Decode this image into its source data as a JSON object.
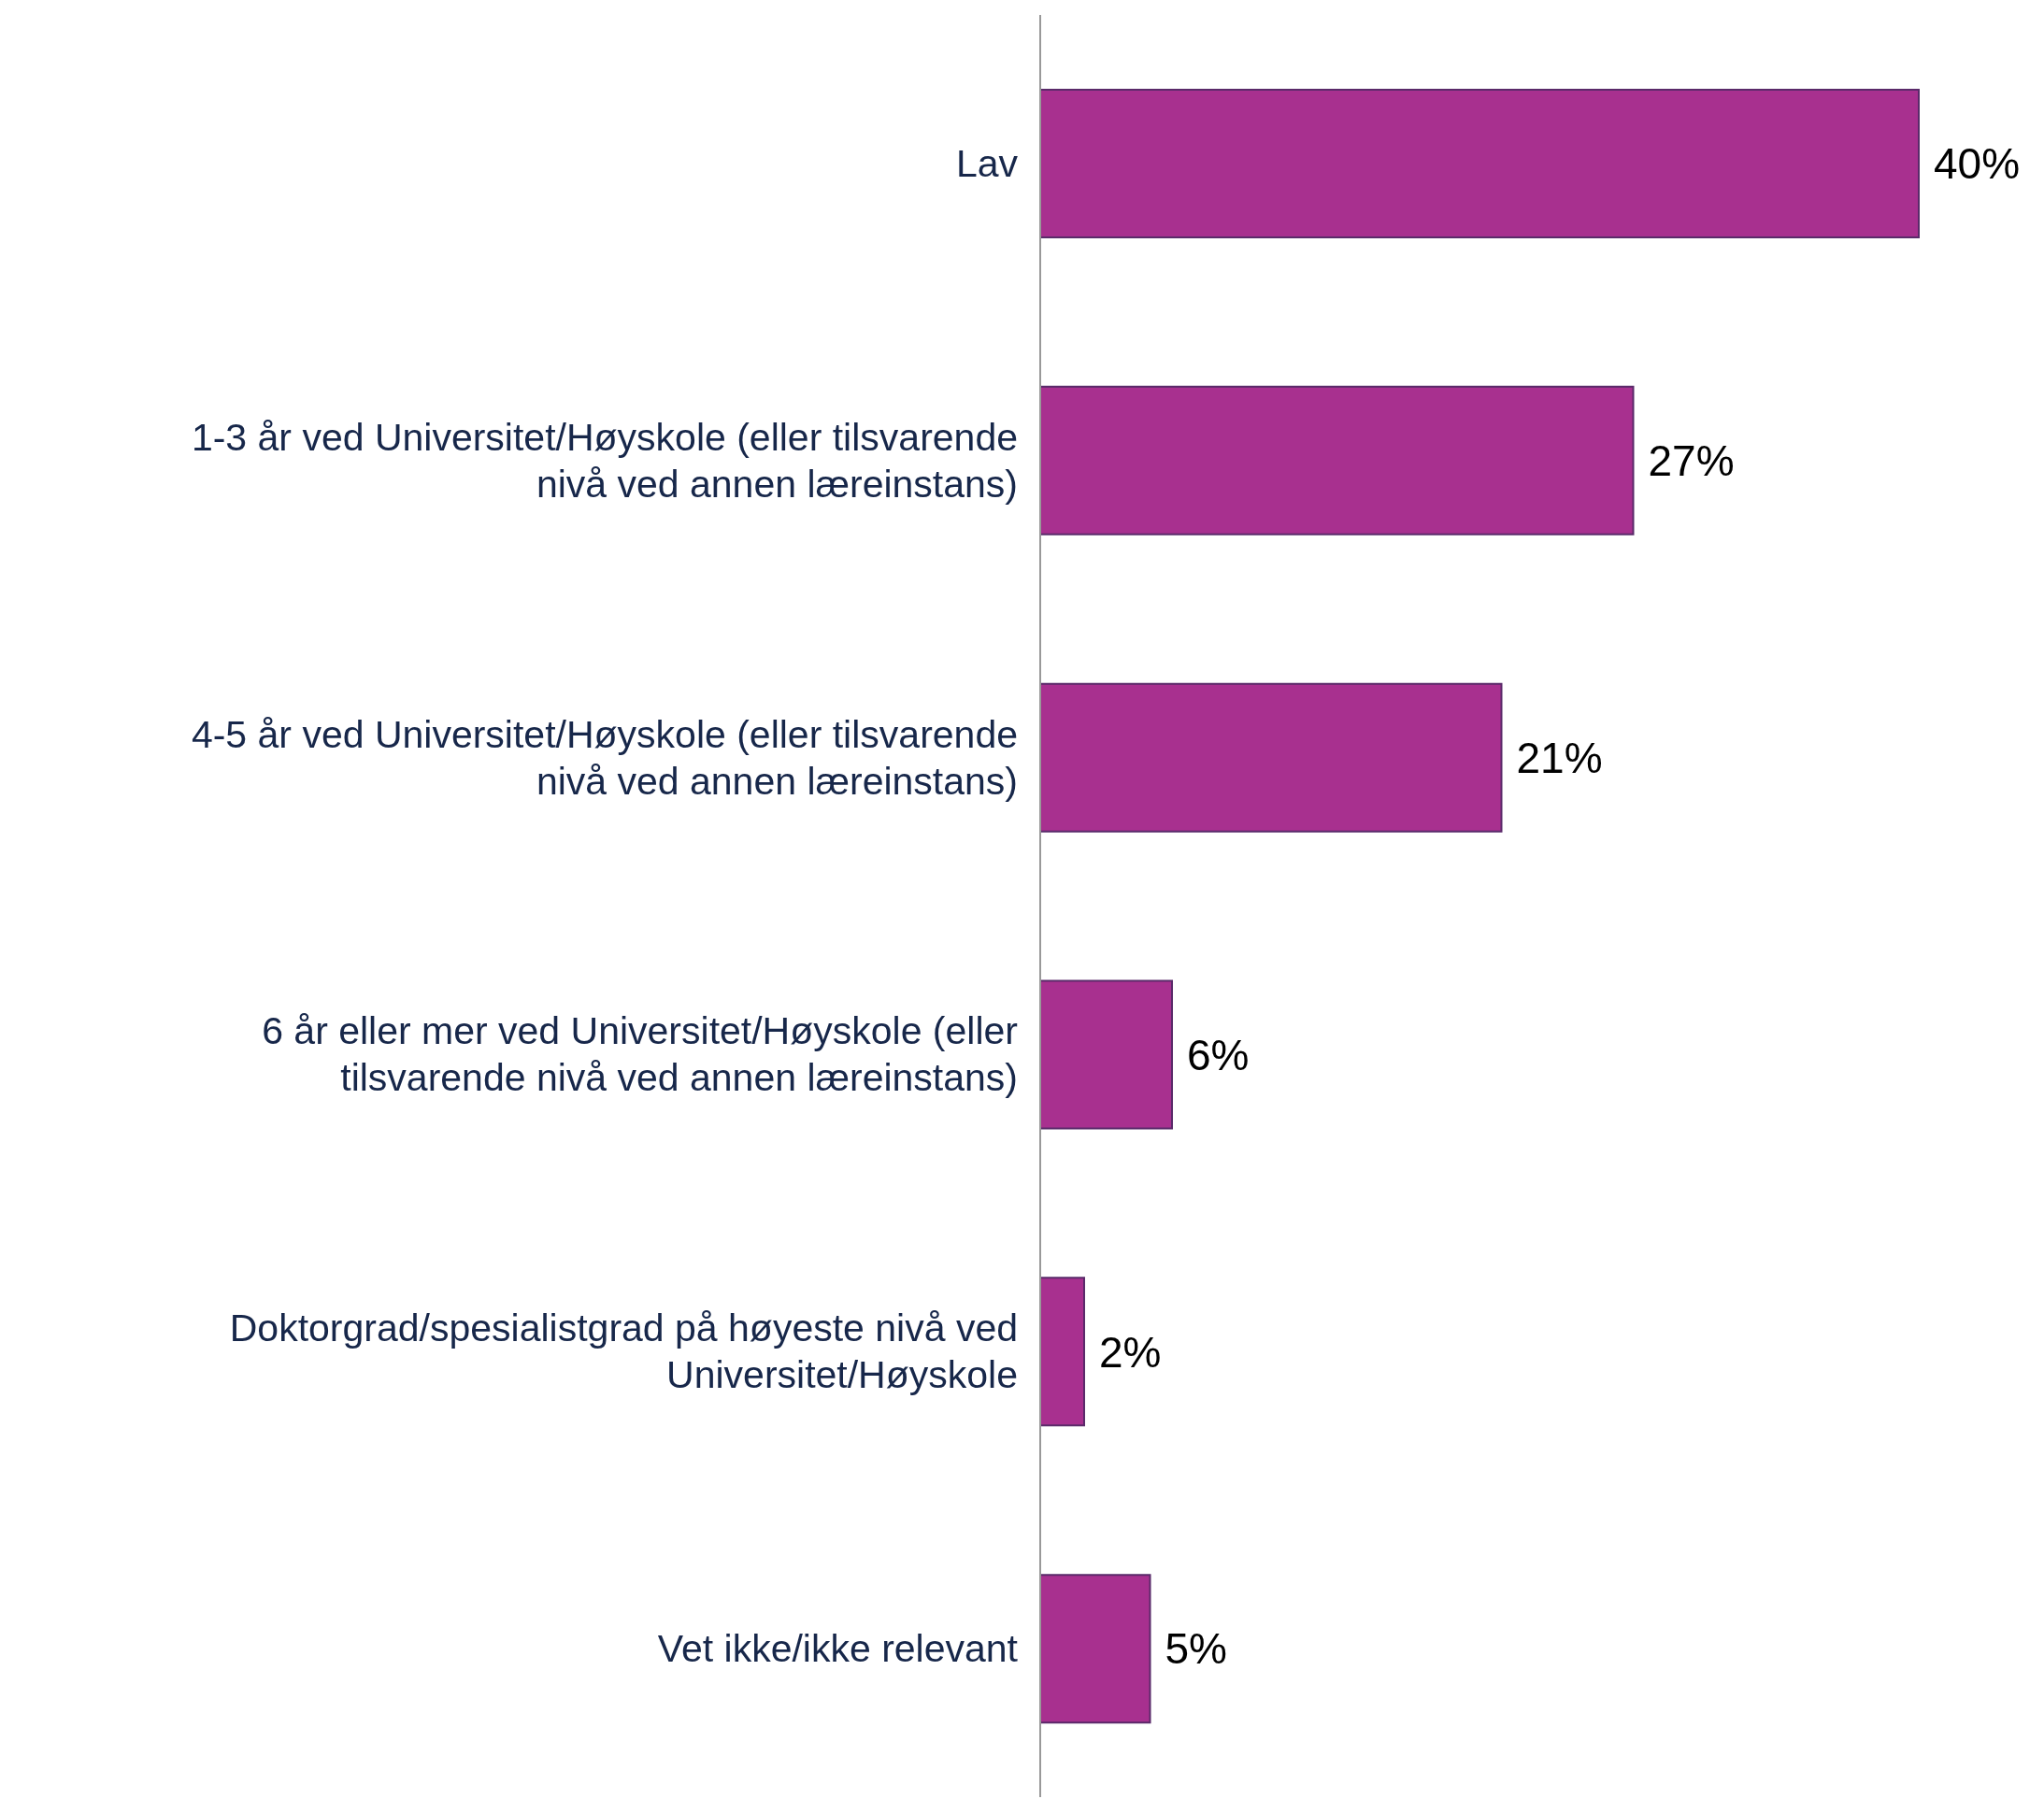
{
  "chart_data": {
    "type": "bar",
    "orientation": "horizontal",
    "categories": [
      "Lav",
      "1-3 år ved Universitet/Høyskole (eller tilsvarende nivå ved annen læreinstans)",
      "4-5 år ved Universitet/Høyskole (eller tilsvarende nivå ved annen læreinstans)",
      "6 år eller mer ved Universitet/Høyskole (eller tilsvarende nivå ved annen læreinstans)",
      "Doktorgrad/spesialistgrad på høyeste nivå ved Universitet/Høyskole",
      "Vet ikke/ikke relevant"
    ],
    "values": [
      40,
      27,
      21,
      6,
      2,
      5
    ],
    "value_labels": [
      "40%",
      "27%",
      "21%",
      "6%",
      "2%",
      "5%"
    ],
    "color": "#a8308f"
  }
}
